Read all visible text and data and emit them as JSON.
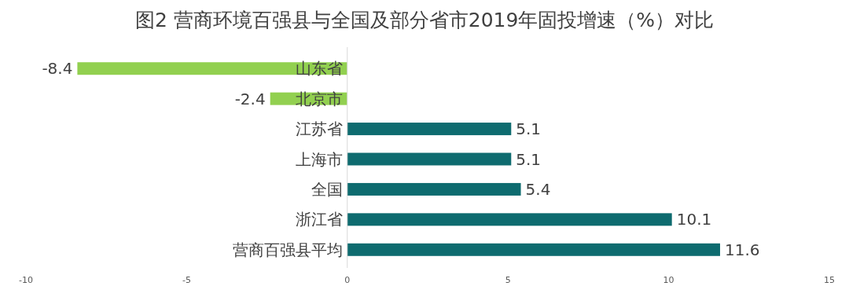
{
  "chart_data": {
    "type": "bar",
    "orientation": "horizontal",
    "title": "图2  营商环境百强县与全国及部分省市2019年固投增速（%）对比",
    "categories": [
      "山东省",
      "北京市",
      "江苏省",
      "上海市",
      "全国",
      "浙江省",
      "营商百强县平均"
    ],
    "values": [
      -8.4,
      -2.4,
      5.1,
      5.1,
      5.4,
      10.1,
      11.6
    ],
    "colors": [
      "#92d050",
      "#92d050",
      "#0e6b6f",
      "#0e6b6f",
      "#0e6b6f",
      "#0e6b6f",
      "#0e6b6f"
    ],
    "xlim": [
      -10,
      15
    ],
    "xticks": [
      -10,
      -5,
      0,
      5,
      10,
      15
    ],
    "data_labels": true,
    "grid": false
  }
}
